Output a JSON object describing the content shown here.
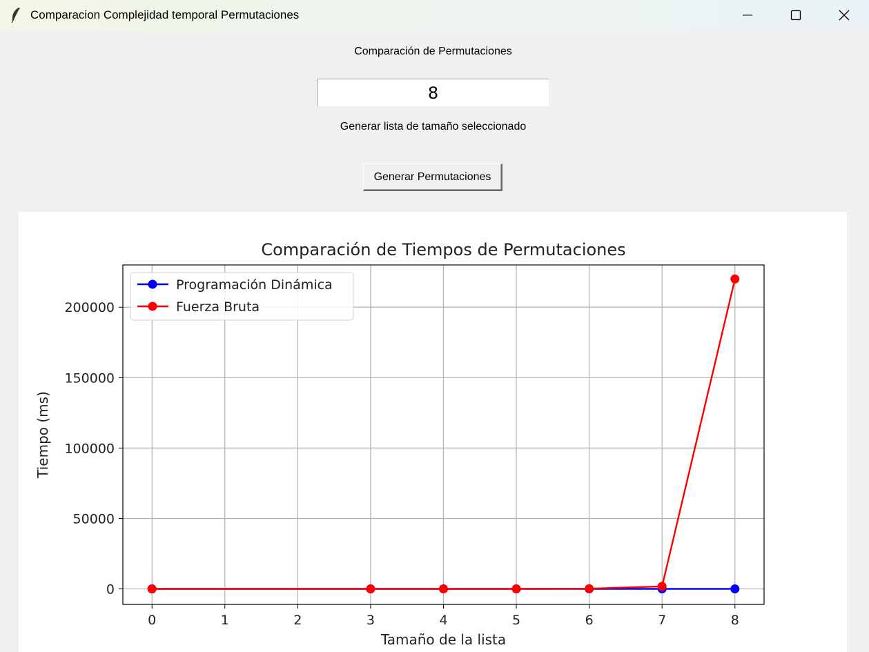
{
  "window": {
    "title": "Comparacion Complejidad temporal Permutaciones",
    "app_icon": "feather-icon",
    "controls": [
      "minimize-icon",
      "maximize-icon",
      "close-icon"
    ]
  },
  "form": {
    "heading": "Comparación de Permutaciones",
    "size_value": "8",
    "hint": "Generar lista de tamaño seleccionado",
    "button_label": "Generar Permutaciones"
  },
  "chart_data": {
    "type": "line",
    "title": "Comparación de Tiempos de Permutaciones",
    "xlabel": "Tamaño de la lista",
    "ylabel": "Tiempo (ms)",
    "xlim": [
      -0.4,
      8.4
    ],
    "ylim": [
      -11000,
      230000
    ],
    "xticks": [
      0,
      1,
      2,
      3,
      4,
      5,
      6,
      7,
      8
    ],
    "yticks": [
      0,
      50000,
      100000,
      150000,
      200000
    ],
    "grid": true,
    "legend_position": "top-left",
    "series": [
      {
        "name": "Programación Dinámica",
        "color": "#0000ff",
        "x": [
          0,
          3,
          4,
          5,
          6,
          7,
          8
        ],
        "y": [
          0,
          0,
          0,
          0,
          0,
          0,
          0
        ]
      },
      {
        "name": "Fuerza Bruta",
        "color": "#ff0000",
        "x": [
          0,
          3,
          4,
          5,
          6,
          7,
          8
        ],
        "y": [
          0,
          0,
          0,
          10,
          150,
          1800,
          220000
        ]
      }
    ]
  }
}
